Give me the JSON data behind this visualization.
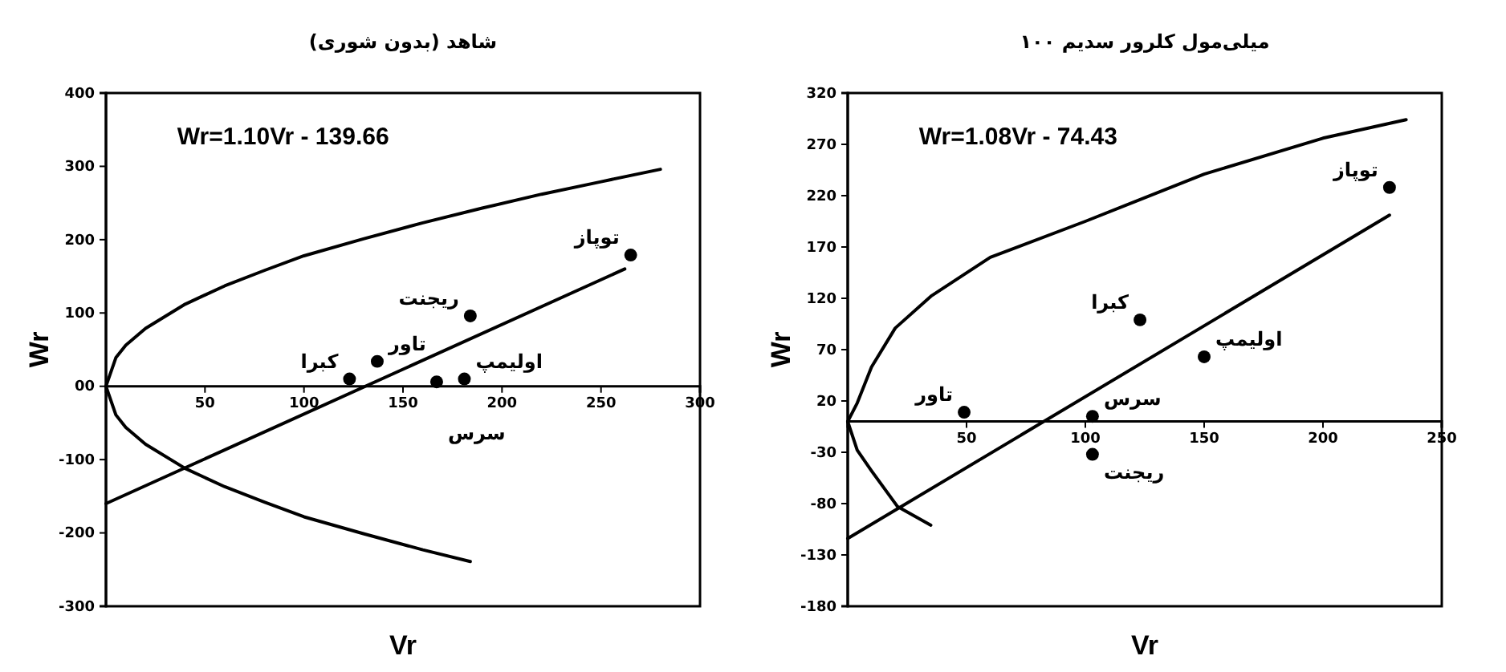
{
  "chart_data": [
    {
      "type": "scatter",
      "title": "شاهد (بدون شوری)",
      "xlabel": "Vr",
      "ylabel": "Wr",
      "xlim": [
        0,
        300
      ],
      "ylim": [
        -300,
        400
      ],
      "xticks": [
        50,
        100,
        150,
        200,
        250,
        300
      ],
      "yticks": [
        -300,
        -200,
        -100,
        {
          "value": 0,
          "label": "00"
        },
        100,
        200,
        300,
        400
      ],
      "series": [
        {
          "type": "line",
          "color": "#000000",
          "x": [
            0,
            5,
            10,
            20,
            40,
            60,
            80,
            100,
            130,
            160,
            190,
            220,
            250,
            280
          ],
          "values": [
            0,
            39,
            56,
            79,
            112,
            137,
            158,
            178,
            201,
            223,
            243,
            262,
            279,
            296
          ]
        },
        {
          "type": "line",
          "color": "#000000",
          "x": [
            0,
            5,
            10,
            20,
            40,
            60,
            80,
            100,
            130,
            160,
            184
          ],
          "values": [
            0,
            -39,
            -56,
            -79,
            -112,
            -137,
            -158,
            -178,
            -201,
            -223,
            -239
          ]
        },
        {
          "type": "line",
          "color": "#000000",
          "x": [
            0,
            262
          ],
          "values": [
            -160,
            160
          ]
        },
        {
          "color": "#000000",
          "marker": "circle",
          "x": [
            123,
            137,
            167,
            181,
            184,
            265
          ],
          "values": [
            10,
            34,
            6,
            10,
            96,
            179
          ]
        }
      ],
      "annotations": [
        "Wr=1.10Vr - 139.66",
        {
          "text": "کبرا",
          "x": 123,
          "y": 10
        },
        {
          "text": "تاور",
          "x": 137,
          "y": 34
        },
        {
          "text": "سرس",
          "x": 167,
          "y": 6
        },
        {
          "text": "اولیمپ",
          "x": 181,
          "y": 10
        },
        {
          "text": "ریجنت",
          "x": 184,
          "y": 96
        },
        {
          "text": "توپاز",
          "x": 265,
          "y": 179
        }
      ]
    },
    {
      "type": "scatter",
      "title": "۱۰۰ میلی‌مول کلرور سدیم",
      "xlabel": "Vr",
      "ylabel": "Wr",
      "xlim": [
        0,
        250
      ],
      "ylim": [
        -180,
        320
      ],
      "xticks": [
        50,
        100,
        150,
        200,
        250
      ],
      "yticks": [
        -180,
        -130,
        -80,
        -30,
        20,
        70,
        120,
        170,
        220,
        270,
        320
      ],
      "series": [
        {
          "type": "line",
          "color": "#000000",
          "x": [
            0,
            4,
            10,
            20,
            35,
            60,
            100,
            150,
            200,
            235
          ],
          "values": [
            0,
            18,
            53,
            91,
            122,
            160,
            195,
            241,
            276,
            294
          ]
        },
        {
          "type": "line",
          "color": "#000000",
          "x": [
            0,
            4,
            10,
            21,
            35
          ],
          "values": [
            0,
            -28,
            -48,
            -83,
            -101
          ]
        },
        {
          "type": "line",
          "color": "#000000",
          "x": [
            0,
            228
          ],
          "values": [
            -114,
            201
          ]
        },
        {
          "color": "#000000",
          "marker": "circle",
          "x": [
            49,
            103,
            103,
            123,
            150,
            228
          ],
          "values": [
            9,
            5,
            -32,
            99,
            63,
            228
          ]
        }
      ],
      "annotations": [
        "Wr=1.08Vr - 74.43",
        {
          "text": "تاور",
          "x": 49,
          "y": 9
        },
        {
          "text": "سرس",
          "x": 103,
          "y": 5
        },
        {
          "text": "ریجنت",
          "x": 103,
          "y": -32
        },
        {
          "text": "کبرا",
          "x": 123,
          "y": 99
        },
        {
          "text": "اولیمپ",
          "x": 150,
          "y": 63
        },
        {
          "text": "توپاز",
          "x": 228,
          "y": 228
        }
      ]
    }
  ]
}
